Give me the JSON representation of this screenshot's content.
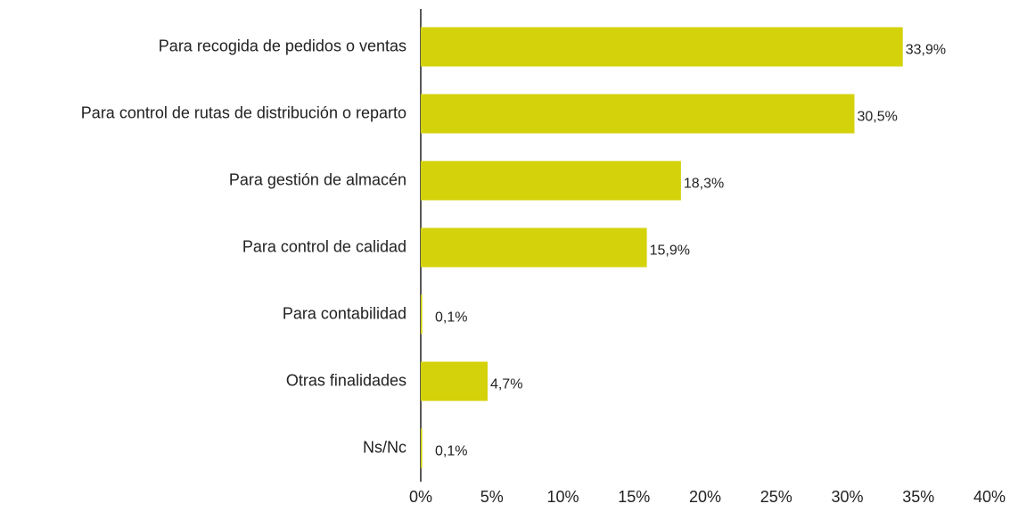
{
  "chart_data": {
    "type": "hbar",
    "categories": [
      "Para recogida de pedidos o ventas",
      "Para control de rutas de distribución o reparto",
      "Para gestión de almacén",
      "Para control de calidad",
      "Para contabilidad",
      "Otras finalidades",
      "Ns/Nc"
    ],
    "values": [
      33.9,
      30.5,
      18.3,
      15.9,
      0.1,
      4.7,
      0.1
    ],
    "value_labels": [
      "33,9%",
      "30,5%",
      "18,3%",
      "15,9%",
      "0,1%",
      "4,7%",
      "0,1%"
    ],
    "color": "#d4d20a",
    "xlim": [
      0,
      40
    ],
    "xticks": [
      {
        "value": 0,
        "label": "0%"
      },
      {
        "value": 5,
        "label": "5%"
      },
      {
        "value": 10,
        "label": "10%"
      },
      {
        "value": 15,
        "label": "15%"
      },
      {
        "value": 20,
        "label": "20%"
      },
      {
        "value": 25,
        "label": "25%"
      },
      {
        "value": 30,
        "label": "30%"
      },
      {
        "value": 35,
        "label": "35%"
      },
      {
        "value": 40,
        "label": "40%"
      }
    ],
    "grid": false
  }
}
